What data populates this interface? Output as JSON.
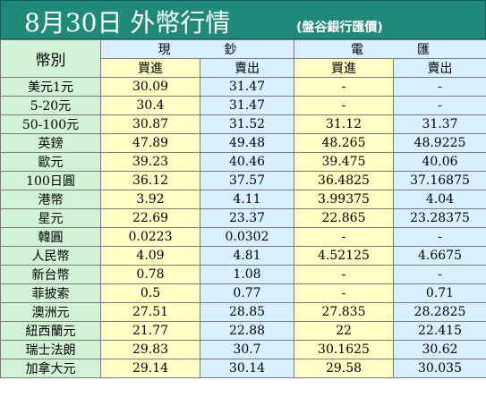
{
  "header": {
    "title": "8月30日 外幣行情",
    "source": "(盤谷銀行匯價)"
  },
  "table": {
    "currency_header": "幣別",
    "groups": [
      {
        "left": "現",
        "right": "鈔"
      },
      {
        "left": "電",
        "right": "匯"
      }
    ],
    "sub_headers": [
      "買進",
      "賣出",
      "買進",
      "賣出"
    ],
    "rows": [
      {
        "currency": "美元1元",
        "cash_buy": "30.09",
        "cash_sell": "31.47",
        "tt_buy": "-",
        "tt_sell": "-"
      },
      {
        "currency": "5-20元",
        "cash_buy": "30.4",
        "cash_sell": "31.47",
        "tt_buy": "-",
        "tt_sell": "-"
      },
      {
        "currency": "50-100元",
        "cash_buy": "30.87",
        "cash_sell": "31.52",
        "tt_buy": "31.12",
        "tt_sell": "31.37"
      },
      {
        "currency": "英鎊",
        "cash_buy": "47.89",
        "cash_sell": "49.48",
        "tt_buy": "48.265",
        "tt_sell": "48.9225"
      },
      {
        "currency": "歐元",
        "cash_buy": "39.23",
        "cash_sell": "40.46",
        "tt_buy": "39.475",
        "tt_sell": "40.06"
      },
      {
        "currency": "100日圓",
        "cash_buy": "36.12",
        "cash_sell": "37.57",
        "tt_buy": "36.4825",
        "tt_sell": "37.16875"
      },
      {
        "currency": "港幣",
        "cash_buy": "3.92",
        "cash_sell": "4.11",
        "tt_buy": "3.99375",
        "tt_sell": "4.04"
      },
      {
        "currency": "星元",
        "cash_buy": "22.69",
        "cash_sell": "23.37",
        "tt_buy": "22.865",
        "tt_sell": "23.28375"
      },
      {
        "currency": "韓圓",
        "cash_buy": "0.0223",
        "cash_sell": "0.0302",
        "tt_buy": "-",
        "tt_sell": "-"
      },
      {
        "currency": "人民幣",
        "cash_buy": "4.09",
        "cash_sell": "4.81",
        "tt_buy": "4.52125",
        "tt_sell": "4.6675"
      },
      {
        "currency": "新台幣",
        "cash_buy": "0.78",
        "cash_sell": "1.08",
        "tt_buy": "-",
        "tt_sell": "-"
      },
      {
        "currency": "菲披索",
        "cash_buy": "0.5",
        "cash_sell": "0.77",
        "tt_buy": "-",
        "tt_sell": "0.71"
      },
      {
        "currency": "澳洲元",
        "cash_buy": "27.51",
        "cash_sell": "28.85",
        "tt_buy": "27.835",
        "tt_sell": "28.2825"
      },
      {
        "currency": "紐西蘭元",
        "cash_buy": "21.77",
        "cash_sell": "22.88",
        "tt_buy": "22",
        "tt_sell": "22.415"
      },
      {
        "currency": "瑞士法朗",
        "cash_buy": "29.83",
        "cash_sell": "30.7",
        "tt_buy": "30.1625",
        "tt_sell": "30.62"
      },
      {
        "currency": "加拿大元",
        "cash_buy": "29.14",
        "cash_sell": "30.14",
        "tt_buy": "29.58",
        "tt_sell": "30.035"
      }
    ]
  },
  "colors": {
    "header_bg": "#1f8a7a",
    "label_bg": "#d3f3d6",
    "buy_bg": "#ffffc6",
    "sell_bg": "#d8f0ff"
  }
}
